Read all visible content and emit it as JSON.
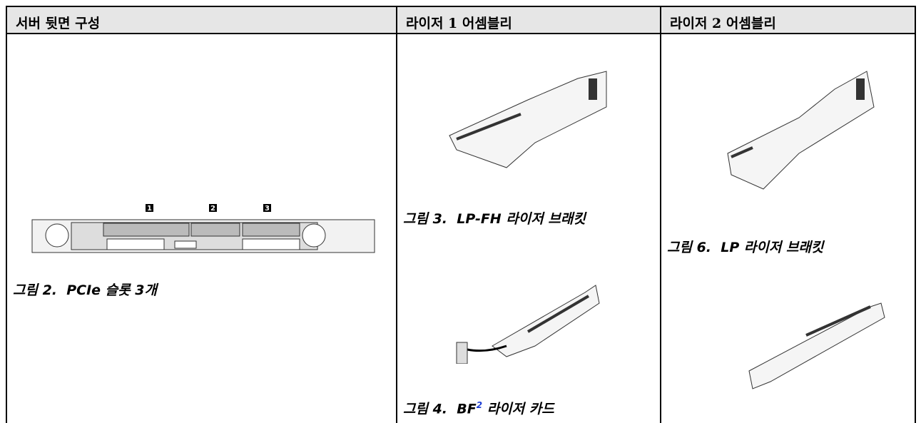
{
  "table": {
    "header": [
      "서버 뒷면 구성",
      "라이저 1 어셈블리",
      "라이저 2 어셈블리"
    ],
    "cells": [
      {
        "callouts": [
          "1",
          "2",
          "3"
        ],
        "captions": [
          {
            "text": "그림 2.  PCIe 슬롯 3개"
          }
        ]
      },
      {
        "captions": [
          {
            "text": "그림 3.  LP-FH 라이저 브래킷"
          },
          {
            "text": "그림 4.  BF",
            "footnote": "2",
            "suffix": " 라이저 카드"
          }
        ]
      },
      {
        "captions": [
          {
            "text": "그림 6.  LP 라이저 브래킷"
          }
        ]
      }
    ]
  }
}
